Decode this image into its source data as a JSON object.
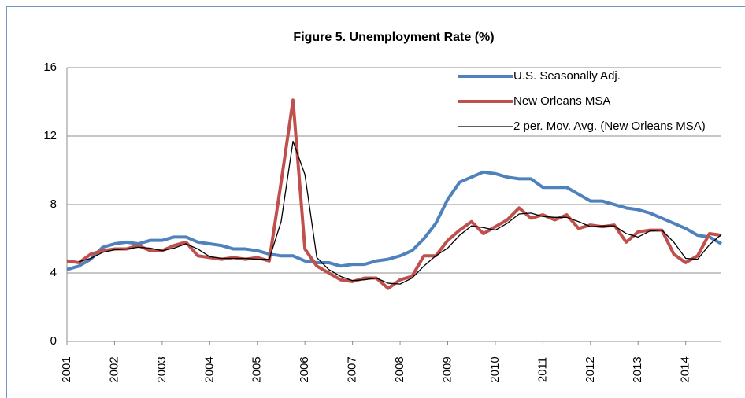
{
  "chart_data": {
    "type": "line",
    "title": "Figure 5. Unemployment Rate (%)",
    "categories": [
      "2001",
      null,
      null,
      null,
      "2002",
      null,
      null,
      null,
      "2003",
      null,
      null,
      null,
      "2004",
      null,
      null,
      null,
      "2005",
      null,
      null,
      null,
      "2006",
      null,
      null,
      null,
      "2007",
      null,
      null,
      null,
      "2008",
      null,
      null,
      null,
      "2009",
      null,
      null,
      null,
      "2010",
      null,
      null,
      null,
      "2011",
      null,
      null,
      null,
      "2012",
      null,
      null,
      null,
      "2013",
      null,
      null,
      null,
      "2014",
      null,
      null,
      null
    ],
    "series": [
      {
        "name": "U.S. Seasonally Adj.",
        "color": "#4f81bd",
        "width": 4,
        "values": [
          4.2,
          4.4,
          4.8,
          5.5,
          5.7,
          5.8,
          5.7,
          5.9,
          5.9,
          6.1,
          6.1,
          5.8,
          5.7,
          5.6,
          5.4,
          5.4,
          5.3,
          5.1,
          5.0,
          5.0,
          4.7,
          4.6,
          4.6,
          4.4,
          4.5,
          4.5,
          4.7,
          4.8,
          5.0,
          5.3,
          6.0,
          6.9,
          8.3,
          9.3,
          9.6,
          9.9,
          9.8,
          9.6,
          9.5,
          9.5,
          9.0,
          9.0,
          9.0,
          8.6,
          8.2,
          8.2,
          8.0,
          7.8,
          7.7,
          7.5,
          7.2,
          6.9,
          6.6,
          6.2,
          6.1,
          5.7
        ]
      },
      {
        "name": "New Orleans MSA",
        "color": "#c0504d",
        "width": 4,
        "values": [
          4.7,
          4.6,
          5.1,
          5.3,
          5.4,
          5.4,
          5.6,
          5.3,
          5.3,
          5.6,
          5.8,
          5.0,
          4.9,
          4.8,
          4.9,
          4.8,
          4.9,
          4.7,
          9.3,
          14.1,
          5.4,
          4.4,
          4.0,
          3.6,
          3.5,
          3.7,
          3.7,
          3.1,
          3.6,
          3.8,
          5.0,
          5.0,
          5.9,
          6.5,
          7.0,
          6.3,
          6.7,
          7.1,
          7.8,
          7.2,
          7.4,
          7.1,
          7.4,
          6.6,
          6.8,
          6.7,
          6.8,
          5.8,
          6.4,
          6.5,
          6.5,
          5.1,
          4.6,
          5.0,
          6.3,
          6.2
        ]
      },
      {
        "name": "2 per. Mov. Avg. (New Orleans MSA)",
        "color": "#000000",
        "width": 1.3,
        "values": [
          null,
          4.65,
          4.85,
          5.2,
          5.35,
          5.4,
          5.5,
          5.45,
          5.3,
          5.45,
          5.7,
          5.4,
          4.95,
          4.85,
          4.85,
          4.85,
          4.8,
          4.8,
          7.0,
          11.7,
          9.75,
          4.9,
          4.2,
          3.8,
          3.55,
          3.6,
          3.7,
          3.4,
          3.35,
          3.7,
          4.4,
          5.0,
          5.45,
          6.2,
          6.75,
          6.65,
          6.5,
          6.9,
          7.45,
          7.5,
          7.3,
          7.25,
          7.25,
          7.0,
          6.7,
          6.75,
          6.75,
          6.3,
          6.1,
          6.45,
          6.5,
          5.8,
          4.85,
          4.8,
          5.65,
          6.25
        ]
      }
    ],
    "ylim": [
      0,
      16
    ],
    "yticks": [
      0,
      4,
      8,
      12,
      16
    ],
    "grid": true,
    "legend": "top-right"
  }
}
